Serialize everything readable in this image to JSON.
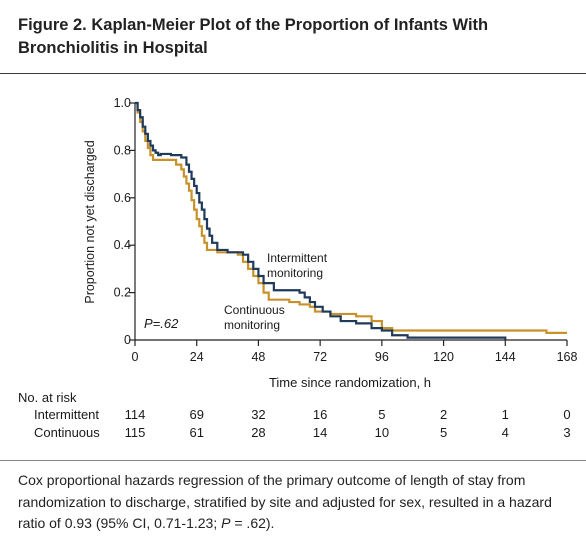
{
  "figure": {
    "title": "Figure 2. Kaplan-Meier Plot of the Proportion of Infants With Bronchiolitis in Hospital"
  },
  "caption": {
    "before": "Cox proportional hazards regression of the primary outcome of length of stay from randomization to discharge, stratified by site and adjusted for sex, resulted in a hazard ratio of 0.93 (95% CI, 0.71-1.23; ",
    "p_label": "P",
    "after": " = .62)."
  },
  "chart_data": {
    "type": "line",
    "xlabel": "Time since randomization, h",
    "ylabel": "Proportion not yet discharged",
    "xlim": [
      0,
      168
    ],
    "ylim": [
      0,
      1.0
    ],
    "x_ticks": [
      0,
      24,
      48,
      72,
      96,
      120,
      144,
      168
    ],
    "y_ticks": [
      0,
      0.2,
      0.4,
      0.6,
      0.8,
      1.0
    ],
    "x_tick_labels": [
      "0",
      "24",
      "48",
      "72",
      "96",
      "120",
      "144",
      "168"
    ],
    "y_tick_labels": [
      "0",
      "0.2",
      "0.4",
      "0.6",
      "0.8",
      "1.0"
    ],
    "p_annotation": "P=.62",
    "series": [
      {
        "name": "Intermittent monitoring",
        "color": "#1f3a5a",
        "steps": [
          [
            0,
            1.0
          ],
          [
            1,
            0.97
          ],
          [
            2,
            0.94
          ],
          [
            3,
            0.9
          ],
          [
            4,
            0.87
          ],
          [
            5,
            0.84
          ],
          [
            6,
            0.82
          ],
          [
            7,
            0.8
          ],
          [
            8,
            0.79
          ],
          [
            9,
            0.78
          ],
          [
            10,
            0.785
          ],
          [
            14,
            0.78
          ],
          [
            18,
            0.77
          ],
          [
            20,
            0.74
          ],
          [
            21,
            0.71
          ],
          [
            22,
            0.68
          ],
          [
            23,
            0.65
          ],
          [
            24,
            0.62
          ],
          [
            25,
            0.58
          ],
          [
            26,
            0.55
          ],
          [
            27,
            0.51
          ],
          [
            28,
            0.47
          ],
          [
            29,
            0.44
          ],
          [
            30,
            0.41
          ],
          [
            32,
            0.38
          ],
          [
            36,
            0.37
          ],
          [
            42,
            0.36
          ],
          [
            44,
            0.33
          ],
          [
            46,
            0.3
          ],
          [
            48,
            0.27
          ],
          [
            50,
            0.24
          ],
          [
            54,
            0.21
          ],
          [
            64,
            0.2
          ],
          [
            66,
            0.18
          ],
          [
            68,
            0.16
          ],
          [
            70,
            0.14
          ],
          [
            73,
            0.12
          ],
          [
            76,
            0.1
          ],
          [
            80,
            0.08
          ],
          [
            86,
            0.07
          ],
          [
            92,
            0.05
          ],
          [
            96,
            0.04
          ],
          [
            100,
            0.02
          ],
          [
            106,
            0.01
          ],
          [
            144,
            0.0
          ]
        ]
      },
      {
        "name": "Continuous monitoring",
        "color": "#c8922a",
        "steps": [
          [
            0,
            1.0
          ],
          [
            1,
            0.96
          ],
          [
            2,
            0.92
          ],
          [
            3,
            0.88
          ],
          [
            4,
            0.84
          ],
          [
            5,
            0.81
          ],
          [
            6,
            0.78
          ],
          [
            7,
            0.76
          ],
          [
            14,
            0.76
          ],
          [
            16,
            0.74
          ],
          [
            18,
            0.72
          ],
          [
            19,
            0.69
          ],
          [
            20,
            0.66
          ],
          [
            21,
            0.63
          ],
          [
            22,
            0.59
          ],
          [
            23,
            0.55
          ],
          [
            24,
            0.51
          ],
          [
            25,
            0.48
          ],
          [
            26,
            0.44
          ],
          [
            27,
            0.41
          ],
          [
            28,
            0.38
          ],
          [
            32,
            0.37
          ],
          [
            40,
            0.36
          ],
          [
            42,
            0.33
          ],
          [
            44,
            0.3
          ],
          [
            46,
            0.27
          ],
          [
            48,
            0.24
          ],
          [
            50,
            0.2
          ],
          [
            52,
            0.17
          ],
          [
            60,
            0.16
          ],
          [
            64,
            0.15
          ],
          [
            68,
            0.14
          ],
          [
            70,
            0.12
          ],
          [
            76,
            0.11
          ],
          [
            86,
            0.1
          ],
          [
            92,
            0.08
          ],
          [
            96,
            0.05
          ],
          [
            100,
            0.04
          ],
          [
            106,
            0.04
          ],
          [
            120,
            0.04
          ],
          [
            160,
            0.03
          ],
          [
            168,
            0.03
          ]
        ]
      }
    ],
    "line_labels": {
      "intermittent": [
        "Intermittent",
        "monitoring"
      ],
      "continuous": [
        "Continuous",
        "monitoring"
      ]
    },
    "risk_table": {
      "title": "No. at risk",
      "rows": [
        {
          "label": "Intermittent",
          "values": [
            "114",
            "69",
            "32",
            "16",
            "5",
            "2",
            "1",
            "0"
          ]
        },
        {
          "label": "Continuous",
          "values": [
            "115",
            "61",
            "28",
            "14",
            "10",
            "5",
            "4",
            "3"
          ]
        }
      ]
    }
  }
}
